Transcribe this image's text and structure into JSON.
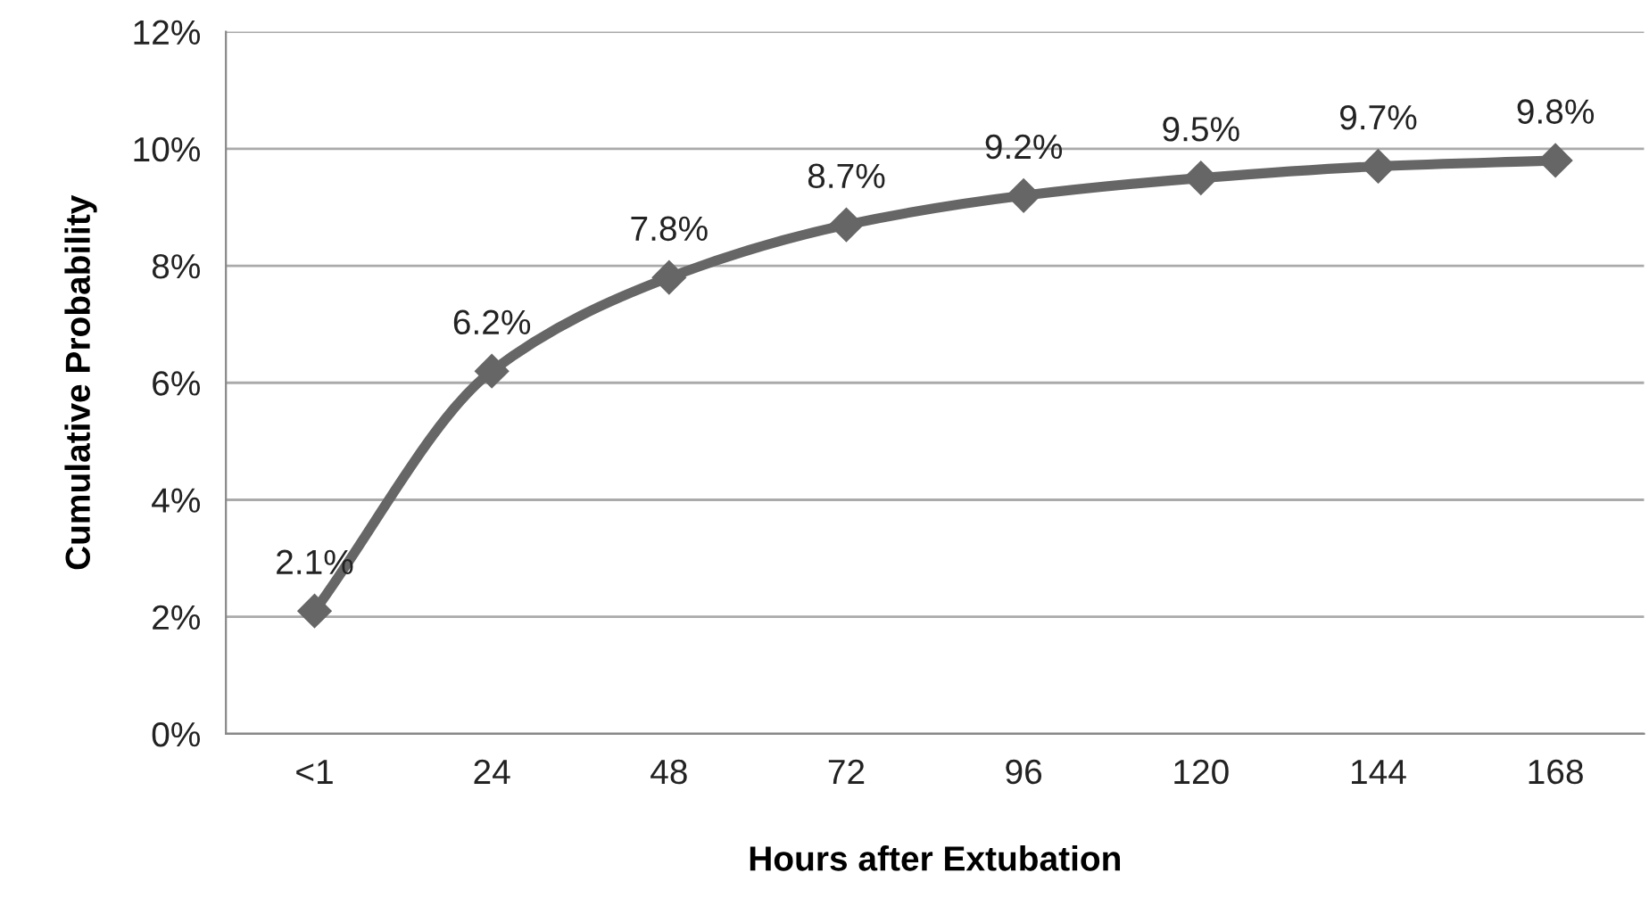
{
  "chart_data": {
    "type": "line",
    "xlabel": "Hours after Extubation",
    "ylabel": "Cumulative Probability",
    "categories": [
      "<1",
      "24",
      "48",
      "72",
      "96",
      "120",
      "144",
      "168"
    ],
    "series": [
      {
        "color": "#666666",
        "values": [
          2.1,
          6.2,
          7.8,
          8.7,
          9.2,
          9.5,
          9.7,
          9.8
        ],
        "value_labels": [
          "2.1%",
          "6.2%",
          "7.8%",
          "8.7%",
          "9.2%",
          "9.5%",
          "9.7%",
          "9.8%"
        ]
      }
    ],
    "ylim": [
      0,
      12
    ],
    "yticks": [
      {
        "value": 0,
        "label": "0%"
      },
      {
        "value": 2,
        "label": "2%"
      },
      {
        "value": 4,
        "label": "4%"
      },
      {
        "value": 6,
        "label": "6%"
      },
      {
        "value": 8,
        "label": "8%"
      },
      {
        "value": 10,
        "label": "10%"
      },
      {
        "value": 12,
        "label": "12%"
      }
    ],
    "grid": "y",
    "marker": "diamond",
    "line_style": "solid",
    "legend": false
  }
}
